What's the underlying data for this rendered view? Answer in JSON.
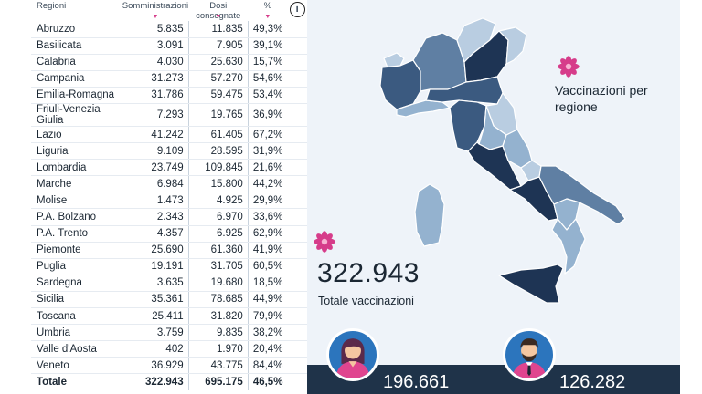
{
  "table": {
    "headers": {
      "region": "Regioni",
      "administered": "Somministrazioni",
      "delivered": "Dosi consegnate",
      "percent": "%"
    },
    "sort_marker": "▼",
    "info_icon": "i",
    "rows": [
      {
        "region": "Abruzzo",
        "administered": "5.835",
        "delivered": "11.835",
        "percent": "49,3%"
      },
      {
        "region": "Basilicata",
        "administered": "3.091",
        "delivered": "7.905",
        "percent": "39,1%"
      },
      {
        "region": "Calabria",
        "administered": "4.030",
        "delivered": "25.630",
        "percent": "15,7%"
      },
      {
        "region": "Campania",
        "administered": "31.273",
        "delivered": "57.270",
        "percent": "54,6%"
      },
      {
        "region": "Emilia-Romagna",
        "administered": "31.786",
        "delivered": "59.475",
        "percent": "53,4%"
      },
      {
        "region": "Friuli-Venezia Giulia",
        "administered": "7.293",
        "delivered": "19.765",
        "percent": "36,9%"
      },
      {
        "region": "Lazio",
        "administered": "41.242",
        "delivered": "61.405",
        "percent": "67,2%"
      },
      {
        "region": "Liguria",
        "administered": "9.109",
        "delivered": "28.595",
        "percent": "31,9%"
      },
      {
        "region": "Lombardia",
        "administered": "23.749",
        "delivered": "109.845",
        "percent": "21,6%"
      },
      {
        "region": "Marche",
        "administered": "6.984",
        "delivered": "15.800",
        "percent": "44,2%"
      },
      {
        "region": "Molise",
        "administered": "1.473",
        "delivered": "4.925",
        "percent": "29,9%"
      },
      {
        "region": "P.A. Bolzano",
        "administered": "2.343",
        "delivered": "6.970",
        "percent": "33,6%"
      },
      {
        "region": "P.A. Trento",
        "administered": "4.357",
        "delivered": "6.925",
        "percent": "62,9%"
      },
      {
        "region": "Piemonte",
        "administered": "25.690",
        "delivered": "61.360",
        "percent": "41,9%"
      },
      {
        "region": "Puglia",
        "administered": "19.191",
        "delivered": "31.705",
        "percent": "60,5%"
      },
      {
        "region": "Sardegna",
        "administered": "3.635",
        "delivered": "19.680",
        "percent": "18,5%"
      },
      {
        "region": "Sicilia",
        "administered": "35.361",
        "delivered": "78.685",
        "percent": "44,9%"
      },
      {
        "region": "Toscana",
        "administered": "25.411",
        "delivered": "31.820",
        "percent": "79,9%"
      },
      {
        "region": "Umbria",
        "administered": "3.759",
        "delivered": "9.835",
        "percent": "38,2%"
      },
      {
        "region": "Valle d'Aosta",
        "administered": "402",
        "delivered": "1.970",
        "percent": "20,4%"
      },
      {
        "region": "Veneto",
        "administered": "36.929",
        "delivered": "43.775",
        "percent": "84,4%"
      }
    ],
    "total": {
      "region": "Totale",
      "administered": "322.943",
      "delivered": "695.175",
      "percent": "46,5%"
    }
  },
  "map": {
    "title": "Vaccinazioni per regione",
    "colors": {
      "darkest": "#1e3454",
      "dark": "#3b5a80",
      "mid": "#5f7fa3",
      "light": "#94b2cf",
      "lightest": "#b9cde1"
    }
  },
  "summary": {
    "total_value": "322.943",
    "total_label": "Totale vaccinazioni",
    "female_count": "196.661",
    "male_count": "126.282"
  },
  "colors": {
    "accent": "#d63c8a",
    "band": "#1f3349",
    "avatar_bg": "#2c75bd",
    "panel": "#eef3f9"
  }
}
